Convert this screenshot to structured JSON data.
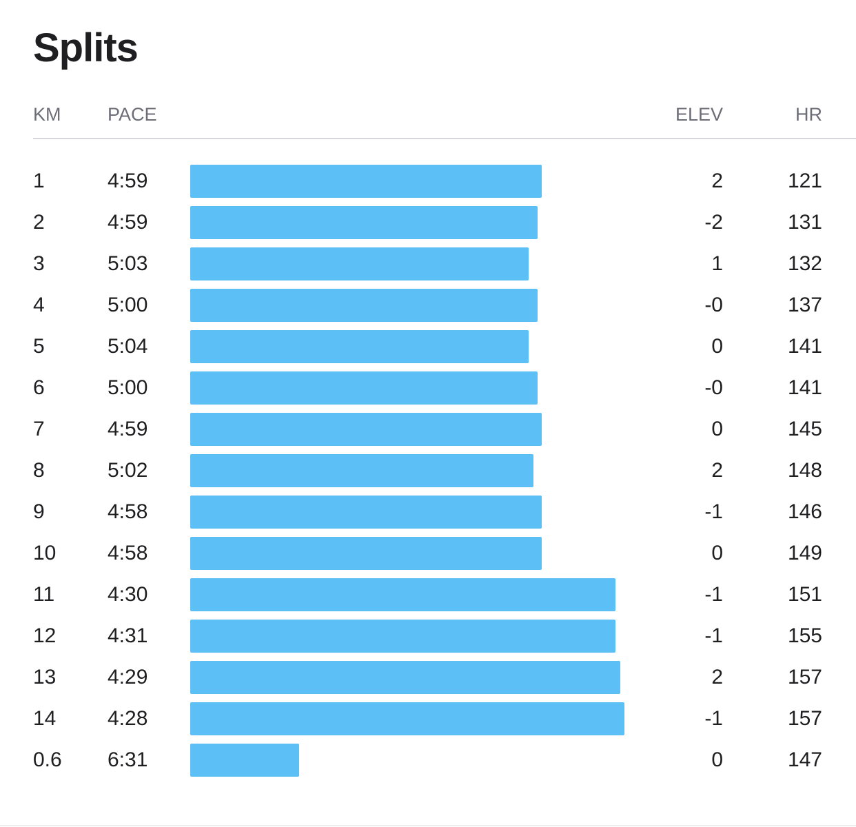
{
  "title": "Splits",
  "columns": {
    "km": "KM",
    "pace": "PACE",
    "elev": "ELEV",
    "hr": "HR"
  },
  "colors": {
    "bar": "#5cc0f7",
    "text": "#1f1f22",
    "header": "#6d6d78"
  },
  "chart_data": {
    "type": "bar",
    "orientation": "horizontal",
    "title": "Splits",
    "categories": [
      "1",
      "2",
      "3",
      "4",
      "5",
      "6",
      "7",
      "8",
      "9",
      "10",
      "11",
      "12",
      "13",
      "14",
      "0.6"
    ],
    "pace_labels": [
      "4:59",
      "4:59",
      "5:03",
      "5:00",
      "5:04",
      "5:00",
      "4:59",
      "5:02",
      "4:58",
      "4:58",
      "4:30",
      "4:31",
      "4:29",
      "4:28",
      "6:31"
    ],
    "elev": [
      "2",
      "-2",
      "1",
      "-0",
      "0",
      "-0",
      "0",
      "2",
      "-1",
      "0",
      "-1",
      "-1",
      "2",
      "-1",
      "0"
    ],
    "hr": [
      "121",
      "131",
      "132",
      "137",
      "141",
      "141",
      "145",
      "148",
      "146",
      "149",
      "151",
      "155",
      "157",
      "157",
      "147"
    ],
    "speed_fraction": [
      0.81,
      0.8,
      0.78,
      0.8,
      0.78,
      0.8,
      0.81,
      0.79,
      0.81,
      0.81,
      0.98,
      0.98,
      0.99,
      1.0,
      0.25
    ]
  }
}
